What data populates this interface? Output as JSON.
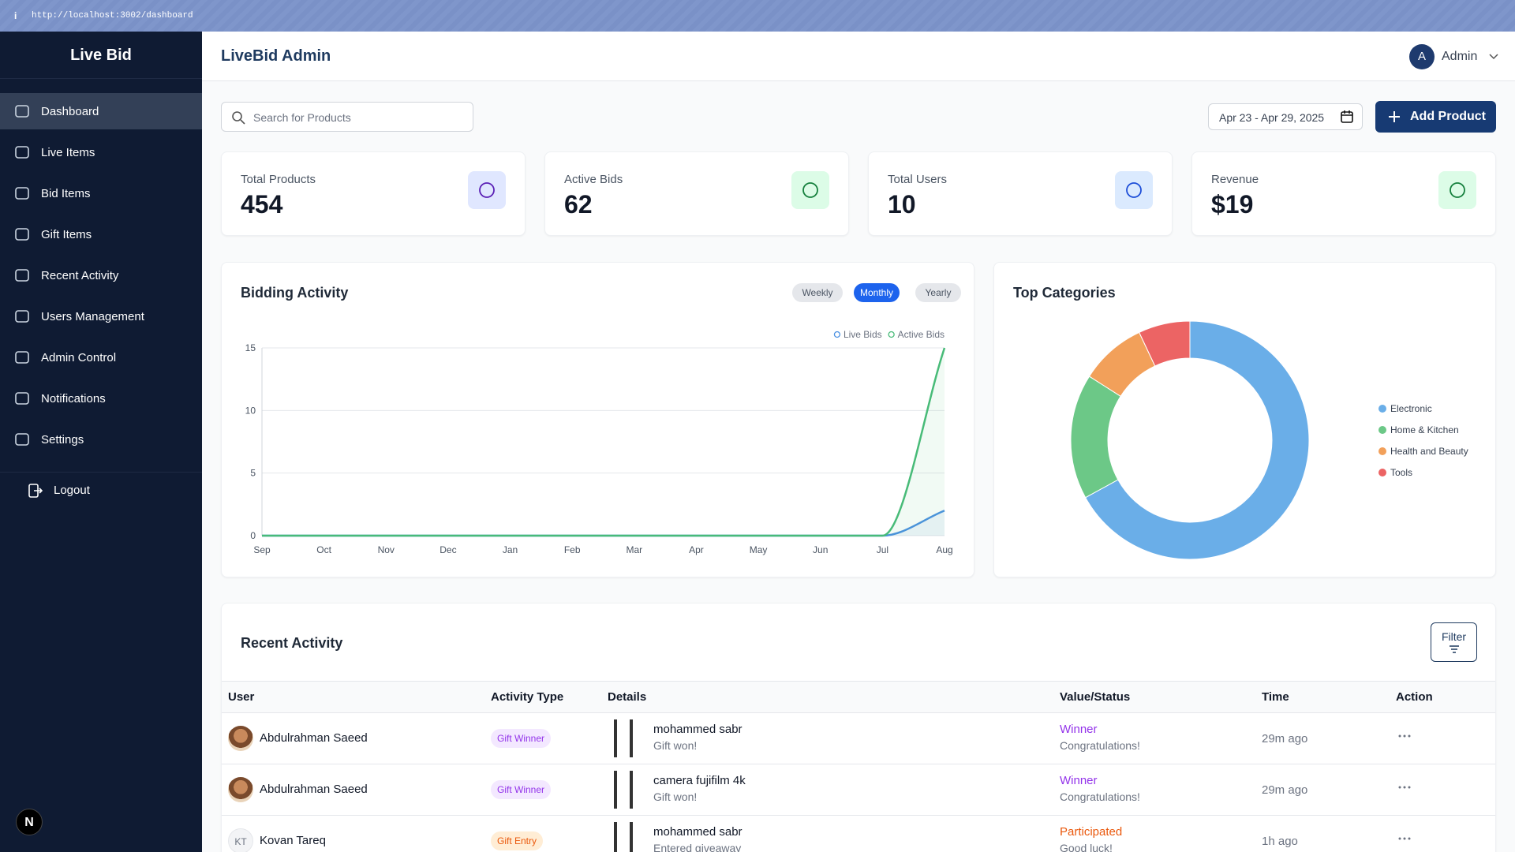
{
  "browser": {
    "url": "http://localhost:3002/dashboard"
  },
  "sidebar": {
    "brand": "Live Bid",
    "nav": [
      "Dashboard",
      "Live Items",
      "Bid Items",
      "Gift Items",
      "Recent Activity",
      "Users Management",
      "Admin Control",
      "Notifications",
      "Settings"
    ],
    "active_nav": "Dashboard",
    "logout": "Logout",
    "badge": "N"
  },
  "header": {
    "title": "LiveBid Admin",
    "avatar": "A",
    "user": "Admin"
  },
  "toolbar": {
    "search_placeholder": "Search for Products",
    "date_range": "Apr 23 - Apr 29, 2025",
    "add_button": "Add Product"
  },
  "stats": [
    {
      "label": "Total Products",
      "value": "454"
    },
    {
      "label": "Active Bids",
      "value": "62"
    },
    {
      "label": "Total Users",
      "value": "10"
    },
    {
      "label": "Revenue",
      "value": "$19"
    }
  ],
  "chart_data": [
    {
      "type": "line",
      "title": "Bidding Activity",
      "tabs": [
        "Weekly",
        "Monthly",
        "Yearly"
      ],
      "active_tab": "Monthly",
      "categories": [
        "Sep",
        "Oct",
        "Nov",
        "Dec",
        "Jan",
        "Feb",
        "Mar",
        "Apr",
        "May",
        "Jun",
        "Jul",
        "Aug"
      ],
      "series": [
        {
          "name": "Live Bids",
          "color": "#4a90e2",
          "values": [
            0,
            0,
            0,
            0,
            0,
            0,
            0,
            0,
            0,
            0,
            0,
            2
          ]
        },
        {
          "name": "Active Bids",
          "color": "#48bb78",
          "values": [
            0,
            0,
            0,
            0,
            0,
            0,
            0,
            0,
            0,
            0,
            0,
            15
          ]
        }
      ],
      "ylim": [
        0,
        15
      ],
      "yticks": [
        0,
        5,
        10,
        15
      ],
      "grid": true
    },
    {
      "type": "pie",
      "title": "Top Categories",
      "donut": true,
      "categories": [
        "Electronic",
        "Home & Kitchen",
        "Health and Beauty",
        "Tools"
      ],
      "values": [
        67,
        17,
        9,
        7
      ],
      "colors": [
        "#6aaee8",
        "#6cc887",
        "#f2a05a",
        "#ec6464"
      ]
    }
  ],
  "recent_activity": {
    "title": "Recent Activity",
    "filter": "Filter",
    "columns": [
      "User",
      "Activity Type",
      "Details",
      "Value/Status",
      "Time",
      "Action"
    ],
    "rows": [
      {
        "user": "Abdulrahman Saeed",
        "activity_type": "Gift Winner",
        "detail_title": "mohammed sabr",
        "detail_subtitle": "Gift won!",
        "status": "Winner",
        "status_note": "Congratulations!",
        "time": "29m ago",
        "color": "#9333ea"
      },
      {
        "user": "Abdulrahman Saeed",
        "activity_type": "Gift Winner",
        "detail_title": "camera fujifilm 4k",
        "detail_subtitle": "Gift won!",
        "status": "Winner",
        "status_note": "Congratulations!",
        "time": "29m ago",
        "color": "#9333ea"
      },
      {
        "user": "Kovan Tareq",
        "initials": "KT",
        "activity_type": "Gift Entry",
        "detail_title": "mohammed sabr",
        "detail_subtitle": "Entered giveaway",
        "status": "Participated",
        "status_note": "Good luck!",
        "time": "1h ago",
        "color": "#ea580c"
      }
    ]
  }
}
